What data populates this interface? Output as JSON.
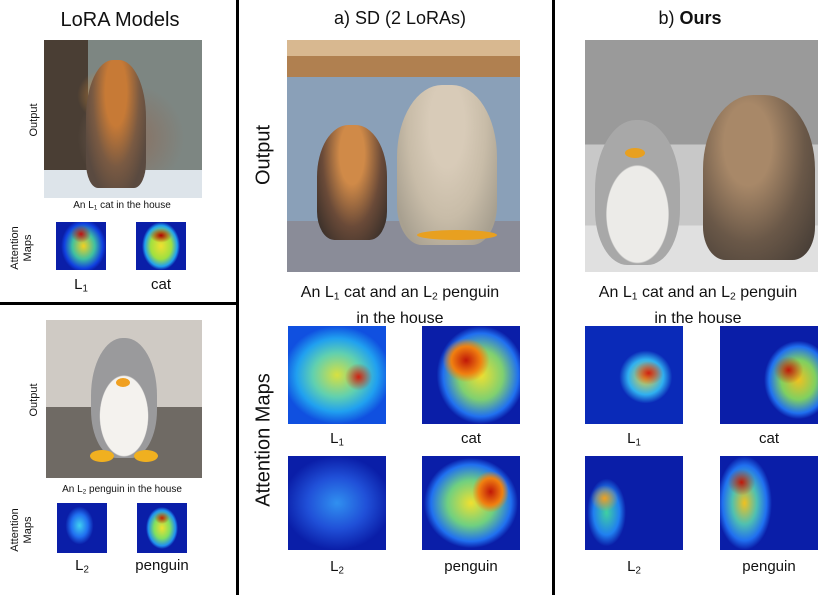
{
  "left_panel": {
    "title": "LoRA Models",
    "top": {
      "row_label": "Output",
      "caption_pre": "An L",
      "caption_sub": "1",
      "caption_post": " cat in the house",
      "maps_label": "Attention Maps",
      "map_labels": [
        {
          "main": "L",
          "sub": "1"
        },
        {
          "main": "cat",
          "sub": ""
        }
      ]
    },
    "bottom": {
      "row_label": "Output",
      "caption_pre": "An L",
      "caption_sub": "2",
      "caption_post": " penguin in the house",
      "maps_label": "Attention Maps",
      "map_labels": [
        {
          "main": "L",
          "sub": "2"
        },
        {
          "main": "penguin",
          "sub": ""
        }
      ]
    }
  },
  "middle_panel": {
    "title": "a) SD (2 LoRAs)",
    "row_label_output": "Output",
    "row_label_maps": "Attention Maps",
    "caption_line1_a": "An L",
    "caption_sub1": "1",
    "caption_line1_b": " cat and an L",
    "caption_sub2": "2",
    "caption_line1_c": " penguin",
    "caption_line2": "in the house",
    "map_labels": [
      {
        "main": "L",
        "sub": "1"
      },
      {
        "main": "cat",
        "sub": ""
      },
      {
        "main": "L",
        "sub": "2"
      },
      {
        "main": "penguin",
        "sub": ""
      }
    ]
  },
  "right_panel": {
    "title_prefix": "b) ",
    "title_bold": "Ours",
    "caption_line1_a": "An L",
    "caption_sub1": "1",
    "caption_line1_b": " cat and an L",
    "caption_sub2": "2",
    "caption_line1_c": " penguin",
    "caption_line2": "in the house",
    "map_labels": [
      {
        "main": "L",
        "sub": "1"
      },
      {
        "main": "cat",
        "sub": ""
      },
      {
        "main": "L",
        "sub": "2"
      },
      {
        "main": "penguin",
        "sub": ""
      }
    ]
  }
}
